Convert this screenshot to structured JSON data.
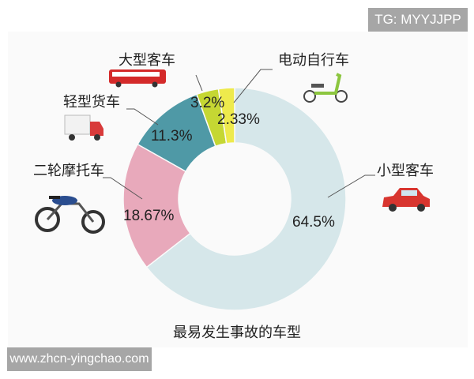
{
  "watermark_top": "TG: MYYJJPP",
  "watermark_bottom": "www.zhcn-yingchao.com",
  "chart_data": {
    "type": "pie",
    "donut": true,
    "title": "最易发生事故的车型",
    "categories": [
      "小型客车",
      "二轮摩托车",
      "轻型货车",
      "大型客车",
      "电动自行车"
    ],
    "values": [
      64.5,
      18.67,
      11.3,
      3.2,
      2.33
    ],
    "labels": [
      "64.5%",
      "18.67%",
      "11.3%",
      "3.2%",
      "2.33%"
    ],
    "colors": [
      "#d6e7ea",
      "#e8a9bb",
      "#4f99a6",
      "#c5d733",
      "#eeea4c"
    ],
    "icons": [
      "car-icon",
      "motorcycle-icon",
      "truck-icon",
      "bus-icon",
      "e-bike-icon"
    ],
    "legend": "leader-line labels around ring"
  }
}
